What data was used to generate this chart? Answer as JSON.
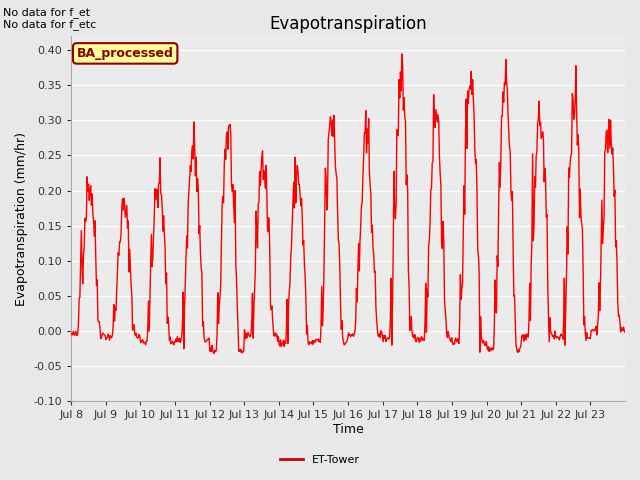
{
  "title": "Evapotranspiration",
  "xlabel": "Time",
  "ylabel": "Evapotranspiration (mm/hr)",
  "ylim": [
    -0.1,
    0.42
  ],
  "yticks": [
    -0.1,
    -0.05,
    0.0,
    0.05,
    0.1,
    0.15,
    0.2,
    0.25,
    0.3,
    0.35,
    0.4
  ],
  "line_color": "#ff0000",
  "line_width": 1.0,
  "fig_bg_color": "#e8e8e8",
  "plot_bg_color": "#ebebeb",
  "legend_label": "ET-Tower",
  "legend_line_color": "#cc0000",
  "no_data_line1": "No data for f_et",
  "no_data_line2": "No data for f_etc",
  "ba_box_text": "BA_processed",
  "ba_box_bg": "#ffff99",
  "ba_box_edge": "#8b0000",
  "title_fontsize": 12,
  "axis_label_fontsize": 9,
  "tick_fontsize": 8,
  "annotation_fontsize": 8,
  "xtick_labels": [
    "Jul 8",
    "Jul 9",
    "Jul 10",
    "Jul 11",
    "Jul 12",
    "Jul 13",
    "Jul 14",
    "Jul 15",
    "Jul 16",
    "Jul 17",
    "Jul 18",
    "Jul 19",
    "Jul 20",
    "Jul 21",
    "Jul 22",
    "Jul 23"
  ],
  "n_days": 16,
  "pts_per_day": 48,
  "day_peaks": [
    0.21,
    0.175,
    0.21,
    0.26,
    0.285,
    0.24,
    0.225,
    0.3,
    0.27,
    0.34,
    0.31,
    0.37,
    0.355,
    0.305,
    0.34,
    0.29
  ],
  "day_troughs": [
    -0.01,
    -0.015,
    -0.03,
    -0.025,
    -0.057,
    -0.01,
    -0.035,
    -0.03,
    -0.01,
    -0.02,
    -0.02,
    -0.03,
    -0.048,
    -0.015,
    -0.02,
    0.005
  ]
}
